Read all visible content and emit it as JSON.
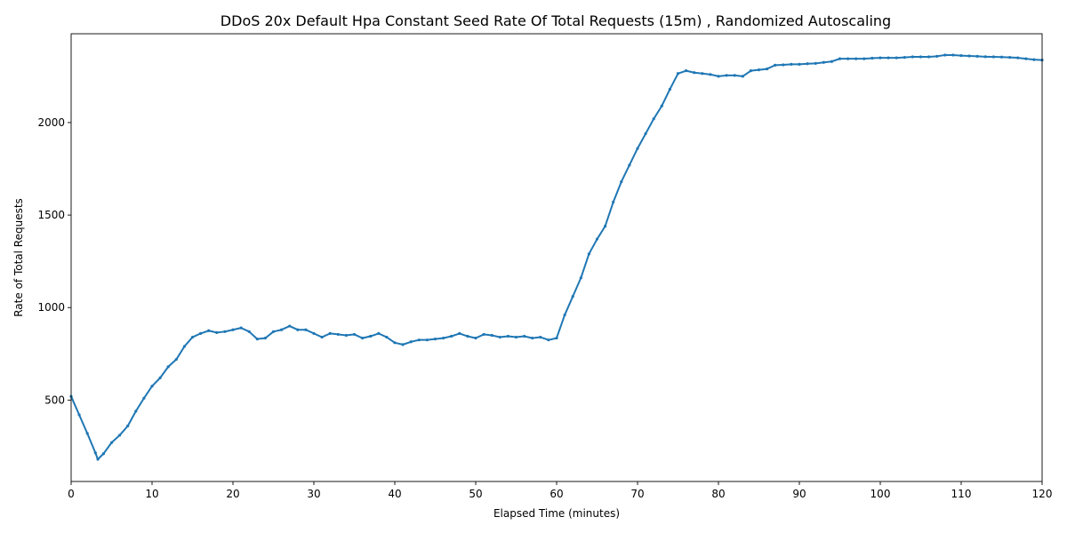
{
  "chart_data": {
    "type": "line",
    "title": "DDoS 20x Default Hpa Constant Seed Rate Of Total Requests (15m) , Randomized Autoscaling",
    "xlabel": "Elapsed Time (minutes)",
    "ylabel": "Rate of Total Requests",
    "xlim": [
      0,
      120
    ],
    "ylim": [
      60,
      2480
    ],
    "xticks": [
      0,
      10,
      20,
      30,
      40,
      50,
      60,
      70,
      80,
      90,
      100,
      110,
      120
    ],
    "yticks": [
      500,
      1000,
      1500,
      2000
    ],
    "grid": false,
    "legend": "none",
    "color": "#1f77b4",
    "series": [
      {
        "x": [
          0,
          1,
          2,
          3,
          3.3,
          4,
          5,
          6,
          7,
          8,
          9,
          10,
          11,
          12,
          13,
          14,
          15,
          16,
          17,
          18,
          19,
          20,
          21,
          22,
          23,
          24,
          25,
          26,
          27,
          28,
          29,
          30,
          31,
          32,
          33,
          34,
          35,
          36,
          37,
          38,
          39,
          40,
          41,
          42,
          43,
          44,
          45,
          46,
          47,
          48,
          49,
          50,
          51,
          52,
          53,
          54,
          55,
          56,
          57,
          58,
          59,
          60,
          61,
          62,
          63,
          64,
          65,
          66,
          67,
          68,
          69,
          70,
          71,
          72,
          73,
          74,
          75,
          76,
          77,
          78,
          79,
          80,
          81,
          82,
          83,
          84,
          85,
          86,
          87,
          88,
          89,
          90,
          91,
          92,
          93,
          94,
          95,
          96,
          97,
          98,
          99,
          100,
          101,
          102,
          103,
          104,
          105,
          106,
          107,
          108,
          109,
          110,
          111,
          112,
          113,
          114,
          115,
          116,
          117,
          118,
          119,
          120
        ],
        "y": [
          520,
          420,
          320,
          215,
          180,
          210,
          270,
          310,
          360,
          440,
          510,
          575,
          620,
          680,
          720,
          790,
          840,
          860,
          875,
          865,
          870,
          880,
          890,
          870,
          830,
          835,
          870,
          880,
          900,
          880,
          880,
          860,
          840,
          860,
          855,
          850,
          855,
          835,
          845,
          860,
          840,
          810,
          800,
          815,
          825,
          825,
          830,
          835,
          845,
          860,
          845,
          835,
          855,
          850,
          840,
          845,
          840,
          845,
          835,
          840,
          825,
          835,
          960,
          1060,
          1160,
          1290,
          1370,
          1440,
          1570,
          1680,
          1770,
          1860,
          1940,
          2020,
          2090,
          2180,
          2265,
          2280,
          2270,
          2265,
          2260,
          2250,
          2255,
          2255,
          2250,
          2280,
          2285,
          2290,
          2310,
          2312,
          2315,
          2315,
          2318,
          2320,
          2325,
          2330,
          2345,
          2345,
          2345,
          2345,
          2348,
          2350,
          2350,
          2350,
          2352,
          2355,
          2355,
          2355,
          2358,
          2365,
          2365,
          2362,
          2360,
          2358,
          2356,
          2355,
          2354,
          2352,
          2350,
          2345,
          2340,
          2338
        ]
      }
    ]
  }
}
